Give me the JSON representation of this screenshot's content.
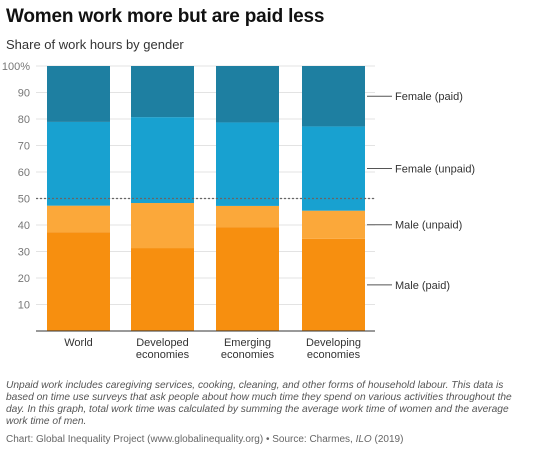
{
  "title": "Women work more but are paid less",
  "subtitle": "Share of work hours by gender",
  "note": "Unpaid work includes caregiving services, cooking, cleaning, and other forms of household labour. This data is based on time use surveys that ask people about how much time they spend on various activities throughout the day. In this graph, total work time was calculated by summing the average work time of women and the average work time of men.",
  "source": {
    "prefix": "Chart: Global Inequality Project (www.globalinequality.org) • Source: Charmes, ",
    "org": "ILO",
    "year": " (2019)"
  },
  "colors": {
    "male_paid": "#f78f0f",
    "male_unpaid": "#fba83a",
    "female_unpaid": "#18a1d0",
    "female_paid": "#1e7fa1",
    "reference_line": "#666666"
  },
  "chart_data": {
    "type": "bar",
    "stacked": true,
    "categories": [
      [
        "World"
      ],
      [
        "Developed",
        "economies"
      ],
      [
        "Emerging",
        "economies"
      ],
      [
        "Developing",
        "economies"
      ]
    ],
    "series": [
      {
        "name": "Male (paid)",
        "values": [
          37.3,
          31.3,
          39.2,
          34.8
        ]
      },
      {
        "name": "Male (unpaid)",
        "values": [
          10.0,
          17.0,
          8.0,
          10.6
        ]
      },
      {
        "name": "Female (unpaid)",
        "values": [
          31.6,
          32.4,
          31.5,
          31.8
        ]
      },
      {
        "name": "Female (paid)",
        "values": [
          21.1,
          19.3,
          21.3,
          22.8
        ]
      }
    ],
    "ylim": [
      0,
      100
    ],
    "yticks": [
      10,
      20,
      30,
      40,
      50,
      60,
      70,
      80,
      90,
      100
    ],
    "ytick_labels": [
      "10",
      "20",
      "30",
      "40",
      "50",
      "60",
      "70",
      "80",
      "90",
      "100%"
    ],
    "reference_line": 50,
    "grid": true,
    "legend": "right, labels aligned to last bar"
  }
}
